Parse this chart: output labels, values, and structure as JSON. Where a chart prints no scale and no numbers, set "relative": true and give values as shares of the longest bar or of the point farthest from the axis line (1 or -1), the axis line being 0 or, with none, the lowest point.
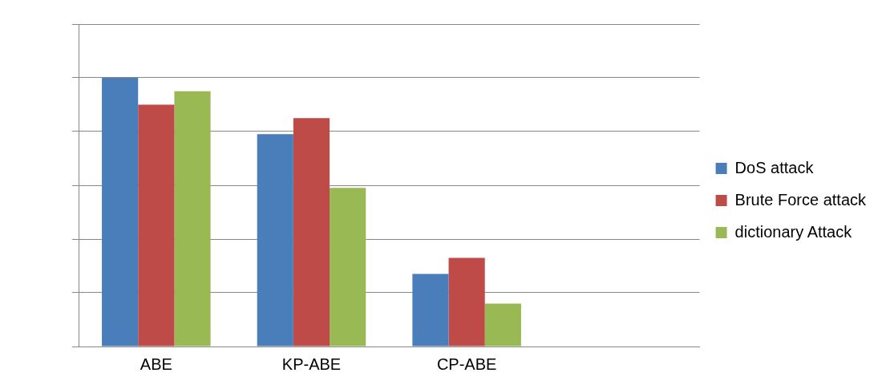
{
  "chart_data": {
    "type": "bar",
    "relative": true,
    "categories": [
      "ABE",
      "KP-ABE",
      "CP-ABE",
      null
    ],
    "series": [
      {
        "name": "DoS attack",
        "color": "#4a7ebb",
        "values": [
          1,
          0.79,
          0.27,
          null
        ]
      },
      {
        "name": "Brute Force attack",
        "color": "#be4b48",
        "values": [
          0.9,
          0.85,
          0.33,
          null
        ]
      },
      {
        "name": "dictionary Attack",
        "color": "#98b954",
        "values": [
          0.95,
          0.59,
          0.16,
          null
        ]
      }
    ],
    "grid": "y",
    "legend": "right"
  }
}
